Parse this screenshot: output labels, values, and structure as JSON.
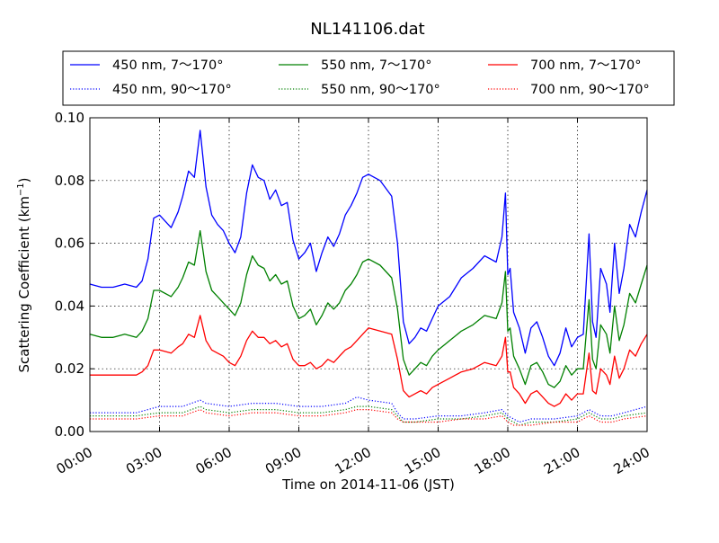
{
  "chart_data": {
    "type": "line",
    "title": "NL141106.dat",
    "xlabel": "Time on 2014-11-06 (JST)",
    "ylabel": "Scattering Coefficient (km",
    "ylabel_sup": "−1",
    "ylabel_close": ")",
    "x_unit": "hours",
    "xlim": [
      0,
      24
    ],
    "ylim": [
      0.0,
      0.1
    ],
    "grid": true,
    "legend_position": "top",
    "x_ticks": [
      {
        "value": 0,
        "label": "00:00"
      },
      {
        "value": 3,
        "label": "03:00"
      },
      {
        "value": 6,
        "label": "06:00"
      },
      {
        "value": 9,
        "label": "09:00"
      },
      {
        "value": 12,
        "label": "12:00"
      },
      {
        "value": 15,
        "label": "15:00"
      },
      {
        "value": 18,
        "label": "18:00"
      },
      {
        "value": 21,
        "label": "21:00"
      },
      {
        "value": 24,
        "label": "24:00"
      }
    ],
    "y_ticks": [
      {
        "value": 0.0,
        "label": "0.00"
      },
      {
        "value": 0.02,
        "label": "0.02"
      },
      {
        "value": 0.04,
        "label": "0.04"
      },
      {
        "value": 0.06,
        "label": "0.06"
      },
      {
        "value": 0.08,
        "label": "0.08"
      },
      {
        "value": 0.1,
        "label": "0.10"
      }
    ],
    "series": [
      {
        "name": "450 nm, 7～170°",
        "color": "#0000ff",
        "style": "solid",
        "x": [
          0,
          0.5,
          1,
          1.5,
          2,
          2.25,
          2.5,
          2.75,
          3,
          3.5,
          3.8,
          4,
          4.25,
          4.5,
          4.75,
          5,
          5.25,
          5.5,
          5.75,
          6,
          6.25,
          6.5,
          6.75,
          7,
          7.25,
          7.5,
          7.75,
          8,
          8.25,
          8.5,
          8.75,
          9,
          9.25,
          9.5,
          9.75,
          10,
          10.25,
          10.5,
          10.75,
          11,
          11.25,
          11.5,
          11.75,
          12,
          12.5,
          13,
          13.25,
          13.5,
          13.75,
          14,
          14.25,
          14.5,
          14.75,
          15,
          15.5,
          16,
          16.5,
          17,
          17.5,
          17.75,
          17.9,
          18,
          18.1,
          18.25,
          18.5,
          18.75,
          19,
          19.25,
          19.5,
          19.75,
          20,
          20.25,
          20.5,
          20.75,
          21,
          21.25,
          21.5,
          21.65,
          21.8,
          22,
          22.25,
          22.4,
          22.6,
          22.8,
          23,
          23.25,
          23.5,
          23.75,
          24
        ],
        "y": [
          0.047,
          0.046,
          0.046,
          0.047,
          0.046,
          0.048,
          0.055,
          0.068,
          0.069,
          0.065,
          0.07,
          0.075,
          0.083,
          0.081,
          0.096,
          0.078,
          0.069,
          0.066,
          0.064,
          0.06,
          0.057,
          0.062,
          0.076,
          0.085,
          0.081,
          0.08,
          0.074,
          0.077,
          0.072,
          0.073,
          0.061,
          0.055,
          0.057,
          0.06,
          0.051,
          0.057,
          0.062,
          0.059,
          0.063,
          0.069,
          0.072,
          0.076,
          0.081,
          0.082,
          0.08,
          0.075,
          0.06,
          0.035,
          0.028,
          0.03,
          0.033,
          0.032,
          0.036,
          0.04,
          0.043,
          0.049,
          0.052,
          0.056,
          0.054,
          0.062,
          0.076,
          0.05,
          0.052,
          0.038,
          0.033,
          0.025,
          0.033,
          0.035,
          0.03,
          0.024,
          0.021,
          0.025,
          0.033,
          0.027,
          0.03,
          0.031,
          0.063,
          0.035,
          0.03,
          0.052,
          0.047,
          0.038,
          0.06,
          0.044,
          0.052,
          0.066,
          0.062,
          0.07,
          0.077
        ]
      },
      {
        "name": "550 nm, 7～170°",
        "color": "#008000",
        "style": "solid",
        "x": [
          0,
          0.5,
          1,
          1.5,
          2,
          2.25,
          2.5,
          2.75,
          3,
          3.5,
          3.8,
          4,
          4.25,
          4.5,
          4.75,
          5,
          5.25,
          5.5,
          5.75,
          6,
          6.25,
          6.5,
          6.75,
          7,
          7.25,
          7.5,
          7.75,
          8,
          8.25,
          8.5,
          8.75,
          9,
          9.25,
          9.5,
          9.75,
          10,
          10.25,
          10.5,
          10.75,
          11,
          11.25,
          11.5,
          11.75,
          12,
          12.5,
          13,
          13.25,
          13.5,
          13.75,
          14,
          14.25,
          14.5,
          14.75,
          15,
          15.5,
          16,
          16.5,
          17,
          17.5,
          17.75,
          17.9,
          18,
          18.1,
          18.25,
          18.5,
          18.75,
          19,
          19.25,
          19.5,
          19.75,
          20,
          20.25,
          20.5,
          20.75,
          21,
          21.25,
          21.5,
          21.65,
          21.8,
          22,
          22.25,
          22.4,
          22.6,
          22.8,
          23,
          23.25,
          23.5,
          23.75,
          24
        ],
        "y": [
          0.031,
          0.03,
          0.03,
          0.031,
          0.03,
          0.032,
          0.036,
          0.045,
          0.045,
          0.043,
          0.046,
          0.049,
          0.054,
          0.053,
          0.064,
          0.051,
          0.045,
          0.043,
          0.041,
          0.039,
          0.037,
          0.041,
          0.05,
          0.056,
          0.053,
          0.052,
          0.048,
          0.05,
          0.047,
          0.048,
          0.04,
          0.036,
          0.037,
          0.039,
          0.034,
          0.037,
          0.041,
          0.039,
          0.041,
          0.045,
          0.047,
          0.05,
          0.054,
          0.055,
          0.053,
          0.049,
          0.039,
          0.023,
          0.018,
          0.02,
          0.022,
          0.021,
          0.024,
          0.026,
          0.029,
          0.032,
          0.034,
          0.037,
          0.036,
          0.041,
          0.051,
          0.032,
          0.033,
          0.024,
          0.02,
          0.015,
          0.021,
          0.022,
          0.019,
          0.015,
          0.014,
          0.016,
          0.021,
          0.018,
          0.02,
          0.02,
          0.042,
          0.023,
          0.02,
          0.034,
          0.031,
          0.025,
          0.04,
          0.029,
          0.034,
          0.044,
          0.041,
          0.047,
          0.053
        ]
      },
      {
        "name": "700 nm, 7～170°",
        "color": "#ff0000",
        "style": "solid",
        "x": [
          0,
          0.5,
          1,
          1.5,
          2,
          2.25,
          2.5,
          2.75,
          3,
          3.5,
          3.8,
          4,
          4.25,
          4.5,
          4.75,
          5,
          5.25,
          5.5,
          5.75,
          6,
          6.25,
          6.5,
          6.75,
          7,
          7.25,
          7.5,
          7.75,
          8,
          8.25,
          8.5,
          8.75,
          9,
          9.25,
          9.5,
          9.75,
          10,
          10.25,
          10.5,
          10.75,
          11,
          11.25,
          11.5,
          11.75,
          12,
          12.5,
          13,
          13.25,
          13.5,
          13.75,
          14,
          14.25,
          14.5,
          14.75,
          15,
          15.5,
          16,
          16.5,
          17,
          17.5,
          17.75,
          17.9,
          18,
          18.1,
          18.25,
          18.5,
          18.75,
          19,
          19.25,
          19.5,
          19.75,
          20,
          20.25,
          20.5,
          20.75,
          21,
          21.25,
          21.5,
          21.65,
          21.8,
          22,
          22.25,
          22.4,
          22.6,
          22.8,
          23,
          23.25,
          23.5,
          23.75,
          24
        ],
        "y": [
          0.018,
          0.018,
          0.018,
          0.018,
          0.018,
          0.019,
          0.021,
          0.026,
          0.026,
          0.025,
          0.027,
          0.028,
          0.031,
          0.03,
          0.037,
          0.029,
          0.026,
          0.025,
          0.024,
          0.022,
          0.021,
          0.024,
          0.029,
          0.032,
          0.03,
          0.03,
          0.028,
          0.029,
          0.027,
          0.028,
          0.023,
          0.021,
          0.021,
          0.022,
          0.02,
          0.021,
          0.023,
          0.022,
          0.024,
          0.026,
          0.027,
          0.029,
          0.031,
          0.033,
          0.032,
          0.031,
          0.023,
          0.013,
          0.011,
          0.012,
          0.013,
          0.012,
          0.014,
          0.015,
          0.017,
          0.019,
          0.02,
          0.022,
          0.021,
          0.024,
          0.03,
          0.019,
          0.019,
          0.014,
          0.012,
          0.009,
          0.012,
          0.013,
          0.011,
          0.009,
          0.008,
          0.009,
          0.012,
          0.01,
          0.012,
          0.012,
          0.025,
          0.013,
          0.012,
          0.02,
          0.018,
          0.015,
          0.024,
          0.017,
          0.02,
          0.026,
          0.024,
          0.028,
          0.031
        ]
      },
      {
        "name": "450 nm, 90～170°",
        "color": "#0000ff",
        "style": "dotted",
        "x": [
          0,
          1,
          2,
          3,
          4,
          4.75,
          5,
          6,
          7,
          8,
          9,
          10,
          11,
          11.5,
          12,
          13,
          13.25,
          13.5,
          14,
          15,
          16,
          17,
          17.75,
          18,
          18.25,
          18.5,
          19,
          20,
          21,
          21.5,
          22,
          22.5,
          23,
          24
        ],
        "y": [
          0.006,
          0.006,
          0.006,
          0.008,
          0.008,
          0.01,
          0.009,
          0.008,
          0.009,
          0.009,
          0.008,
          0.008,
          0.009,
          0.011,
          0.01,
          0.009,
          0.006,
          0.004,
          0.004,
          0.005,
          0.005,
          0.006,
          0.007,
          0.005,
          0.004,
          0.003,
          0.004,
          0.004,
          0.005,
          0.007,
          0.005,
          0.005,
          0.006,
          0.008
        ]
      },
      {
        "name": "550 nm, 90～170°",
        "color": "#008000",
        "style": "dotted",
        "x": [
          0,
          1,
          2,
          3,
          4,
          4.75,
          5,
          6,
          7,
          8,
          9,
          10,
          11,
          11.5,
          12,
          13,
          13.25,
          13.5,
          14,
          15,
          16,
          17,
          17.75,
          18,
          18.25,
          18.5,
          19,
          20,
          21,
          21.5,
          22,
          22.5,
          23,
          24
        ],
        "y": [
          0.005,
          0.005,
          0.005,
          0.006,
          0.006,
          0.008,
          0.007,
          0.006,
          0.007,
          0.007,
          0.006,
          0.006,
          0.007,
          0.008,
          0.008,
          0.007,
          0.005,
          0.003,
          0.003,
          0.004,
          0.004,
          0.005,
          0.006,
          0.004,
          0.003,
          0.002,
          0.003,
          0.003,
          0.004,
          0.006,
          0.004,
          0.004,
          0.005,
          0.006
        ]
      },
      {
        "name": "700 nm, 90～170°",
        "color": "#ff0000",
        "style": "dotted",
        "x": [
          0,
          1,
          2,
          3,
          4,
          4.75,
          5,
          6,
          7,
          8,
          9,
          10,
          11,
          11.5,
          12,
          13,
          13.25,
          13.5,
          14,
          15,
          16,
          17,
          17.75,
          18,
          18.25,
          18.5,
          19,
          20,
          21,
          21.5,
          22,
          22.5,
          23,
          24
        ],
        "y": [
          0.004,
          0.004,
          0.004,
          0.005,
          0.005,
          0.007,
          0.006,
          0.005,
          0.006,
          0.006,
          0.005,
          0.005,
          0.006,
          0.007,
          0.007,
          0.006,
          0.004,
          0.003,
          0.003,
          0.003,
          0.004,
          0.004,
          0.005,
          0.003,
          0.002,
          0.002,
          0.002,
          0.003,
          0.003,
          0.005,
          0.003,
          0.003,
          0.004,
          0.005
        ]
      }
    ]
  }
}
